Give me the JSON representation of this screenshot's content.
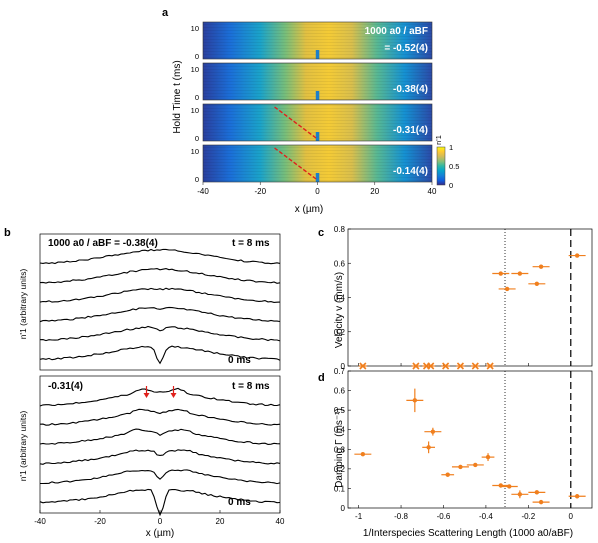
{
  "panel_labels": {
    "a": "a",
    "b": "b",
    "c": "c",
    "d": "d"
  },
  "heatmaps": {
    "ylabel": "Hold Time t (ms)",
    "xlabel": "x (µm)",
    "xticks": [
      "-40",
      "-20",
      "0",
      "20",
      "40"
    ],
    "yticks": [
      "0",
      "10"
    ],
    "title_line": "1000 a0 / aBF",
    "strips": [
      {
        "label": "= -0.52(4)",
        "dark_line": false
      },
      {
        "label": "-0.38(4)",
        "dark_line": false
      },
      {
        "label": "-0.31(4)",
        "dark_line": true
      },
      {
        "label": "-0.14(4)",
        "dark_line": true
      }
    ],
    "colorbar": {
      "label": "n'1",
      "ticks": [
        "0",
        "0.5",
        "1"
      ],
      "colors": [
        "#352a87",
        "#0f5cdd",
        "#1481d6",
        "#06a4ca",
        "#2eb7a4",
        "#87bf77",
        "#d1bb59",
        "#fec832",
        "#f9fb0e"
      ]
    }
  },
  "profiles": {
    "top": {
      "title": "1000 a0 / aBF = -0.38(4)",
      "t_top": "t = 8 ms",
      "t_bottom": "0 ms"
    },
    "bottom": {
      "title": "-0.31(4)",
      "t_top": "t = 8 ms",
      "t_bottom": "0 ms"
    },
    "ylabel": "n'1 (arbitrary units)",
    "xlabel": "x (µm)",
    "xticks": [
      "-40",
      "-20",
      "0",
      "20",
      "40"
    ],
    "arrow_color": "#e0201b"
  },
  "chart_data": [
    {
      "type": "scatter",
      "panel": "c",
      "ylabel": "Velocity v (mm/s)",
      "xlim": [
        -1.05,
        0.1
      ],
      "ylim": [
        0,
        0.8
      ],
      "yticks": [
        "0",
        "0.2",
        "0.4",
        "0.6",
        "0.8"
      ],
      "color": "#f07f1e",
      "points": [
        {
          "x": -0.98,
          "y": 0.0,
          "xerr": 0.02
        },
        {
          "x": -0.73,
          "y": 0.0,
          "xerr": 0.02
        },
        {
          "x": -0.68,
          "y": 0.0,
          "xerr": 0.02
        },
        {
          "x": -0.66,
          "y": 0.0,
          "xerr": 0.02
        },
        {
          "x": -0.59,
          "y": 0.0,
          "xerr": 0.02
        },
        {
          "x": -0.52,
          "y": 0.0,
          "xerr": 0.02
        },
        {
          "x": -0.45,
          "y": 0.0,
          "xerr": 0.02
        },
        {
          "x": -0.38,
          "y": 0.0,
          "xerr": 0.02
        },
        {
          "x": -0.33,
          "y": 0.54,
          "xerr": 0.04
        },
        {
          "x": -0.3,
          "y": 0.45,
          "xerr": 0.04
        },
        {
          "x": -0.24,
          "y": 0.54,
          "xerr": 0.04
        },
        {
          "x": -0.16,
          "y": 0.48,
          "xerr": 0.04
        },
        {
          "x": -0.14,
          "y": 0.58,
          "xerr": 0.04
        },
        {
          "x": 0.03,
          "y": 0.645,
          "xerr": 0.04
        }
      ],
      "vline_dotted": -0.31,
      "vline_dashed": 0.0
    },
    {
      "type": "scatter",
      "panel": "d",
      "ylabel": "Damping Γ (ms⁻¹)",
      "xlabel": "1/Interspecies Scattering Length (1000 a0/aBF)",
      "xlim": [
        -1.05,
        0.1
      ],
      "ylim": [
        0,
        0.7
      ],
      "xticks": [
        -1,
        -0.8,
        -0.6,
        -0.4,
        -0.2,
        0
      ],
      "xtick_labels": [
        "-1",
        "-0.8",
        "-0.6",
        "-0.4",
        "-0.2",
        "0"
      ],
      "yticks": [
        "0",
        "0.1",
        "0.2",
        "0.3",
        "0.4",
        "0.5",
        "0.6",
        "0.7"
      ],
      "color": "#f07f1e",
      "points": [
        {
          "x": -0.98,
          "y": 0.275,
          "xerr": 0.04,
          "yerr": 0.005
        },
        {
          "x": -0.735,
          "y": 0.55,
          "xerr": 0.04,
          "yerr": 0.06
        },
        {
          "x": -0.67,
          "y": 0.31,
          "xerr": 0.03,
          "yerr": 0.03
        },
        {
          "x": -0.65,
          "y": 0.39,
          "xerr": 0.04,
          "yerr": 0.02
        },
        {
          "x": -0.58,
          "y": 0.17,
          "xerr": 0.03,
          "yerr": 0.01
        },
        {
          "x": -0.52,
          "y": 0.21,
          "xerr": 0.04,
          "yerr": 0.01
        },
        {
          "x": -0.45,
          "y": 0.22,
          "xerr": 0.04,
          "yerr": 0.01
        },
        {
          "x": -0.39,
          "y": 0.26,
          "xerr": 0.03,
          "yerr": 0.02
        },
        {
          "x": -0.33,
          "y": 0.115,
          "xerr": 0.04,
          "yerr": 0.01
        },
        {
          "x": -0.29,
          "y": 0.11,
          "xerr": 0.04,
          "yerr": 0.01
        },
        {
          "x": -0.24,
          "y": 0.07,
          "xerr": 0.04,
          "yerr": 0.02
        },
        {
          "x": -0.16,
          "y": 0.08,
          "xerr": 0.04,
          "yerr": 0.01
        },
        {
          "x": -0.14,
          "y": 0.03,
          "xerr": 0.04,
          "yerr": 0.01
        },
        {
          "x": 0.03,
          "y": 0.06,
          "xerr": 0.04,
          "yerr": 0.005
        }
      ],
      "vline_dotted": -0.31,
      "vline_dashed": 0.0
    }
  ]
}
